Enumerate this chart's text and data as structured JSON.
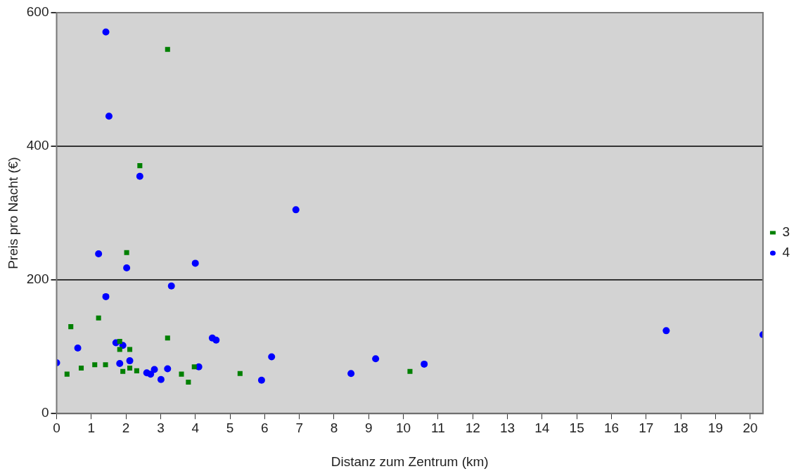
{
  "chart_data": {
    "type": "scatter",
    "xlabel": "Distanz zum Zentrum (km)",
    "ylabel": "Preis pro Nacht (€)",
    "xlim": [
      0,
      20.37
    ],
    "xticks": [
      0,
      1,
      2,
      3,
      4,
      5,
      6,
      7,
      8,
      9,
      10,
      11,
      12,
      13,
      14,
      15,
      16,
      17,
      18,
      19,
      20
    ],
    "ylim": [
      0,
      600
    ],
    "yticks": [
      0,
      200,
      400,
      600
    ],
    "grid": "y",
    "legend": "right",
    "series": [
      {
        "name": "3",
        "color": "#008000",
        "marker": "square",
        "x": [
          3.2,
          2.4,
          2.02,
          1.21,
          0.41,
          3.2,
          1.82,
          1.82,
          2.11,
          0.71,
          0.3,
          1.1,
          1.41,
          1.91,
          2.11,
          2.31,
          3.6,
          3.8,
          3.97,
          5.29,
          10.19
        ],
        "values": [
          545,
          371,
          241,
          143,
          130,
          113,
          108,
          96,
          96,
          68,
          59,
          73,
          73,
          63,
          68,
          64,
          59,
          47,
          70,
          60,
          63
        ]
      },
      {
        "name": "4",
        "color": "#0000ff",
        "marker": "circle",
        "x": [
          1.42,
          1.51,
          2.4,
          1.21,
          2.02,
          4.0,
          3.31,
          1.42,
          0.61,
          1.71,
          1.91,
          4.49,
          4.6,
          0,
          1.82,
          2.11,
          2.6,
          2.71,
          2.82,
          3.01,
          3.2,
          4.1,
          6.9,
          5.91,
          6.2,
          8.49,
          9.2,
          10.6,
          17.58,
          20.37
        ],
        "values": [
          571,
          445,
          355,
          239,
          218,
          225,
          191,
          175,
          98,
          106,
          102,
          113,
          110,
          76,
          75,
          79,
          61,
          59,
          66,
          51,
          67,
          70,
          305,
          50,
          85,
          60,
          82,
          74,
          124,
          118
        ]
      }
    ]
  }
}
